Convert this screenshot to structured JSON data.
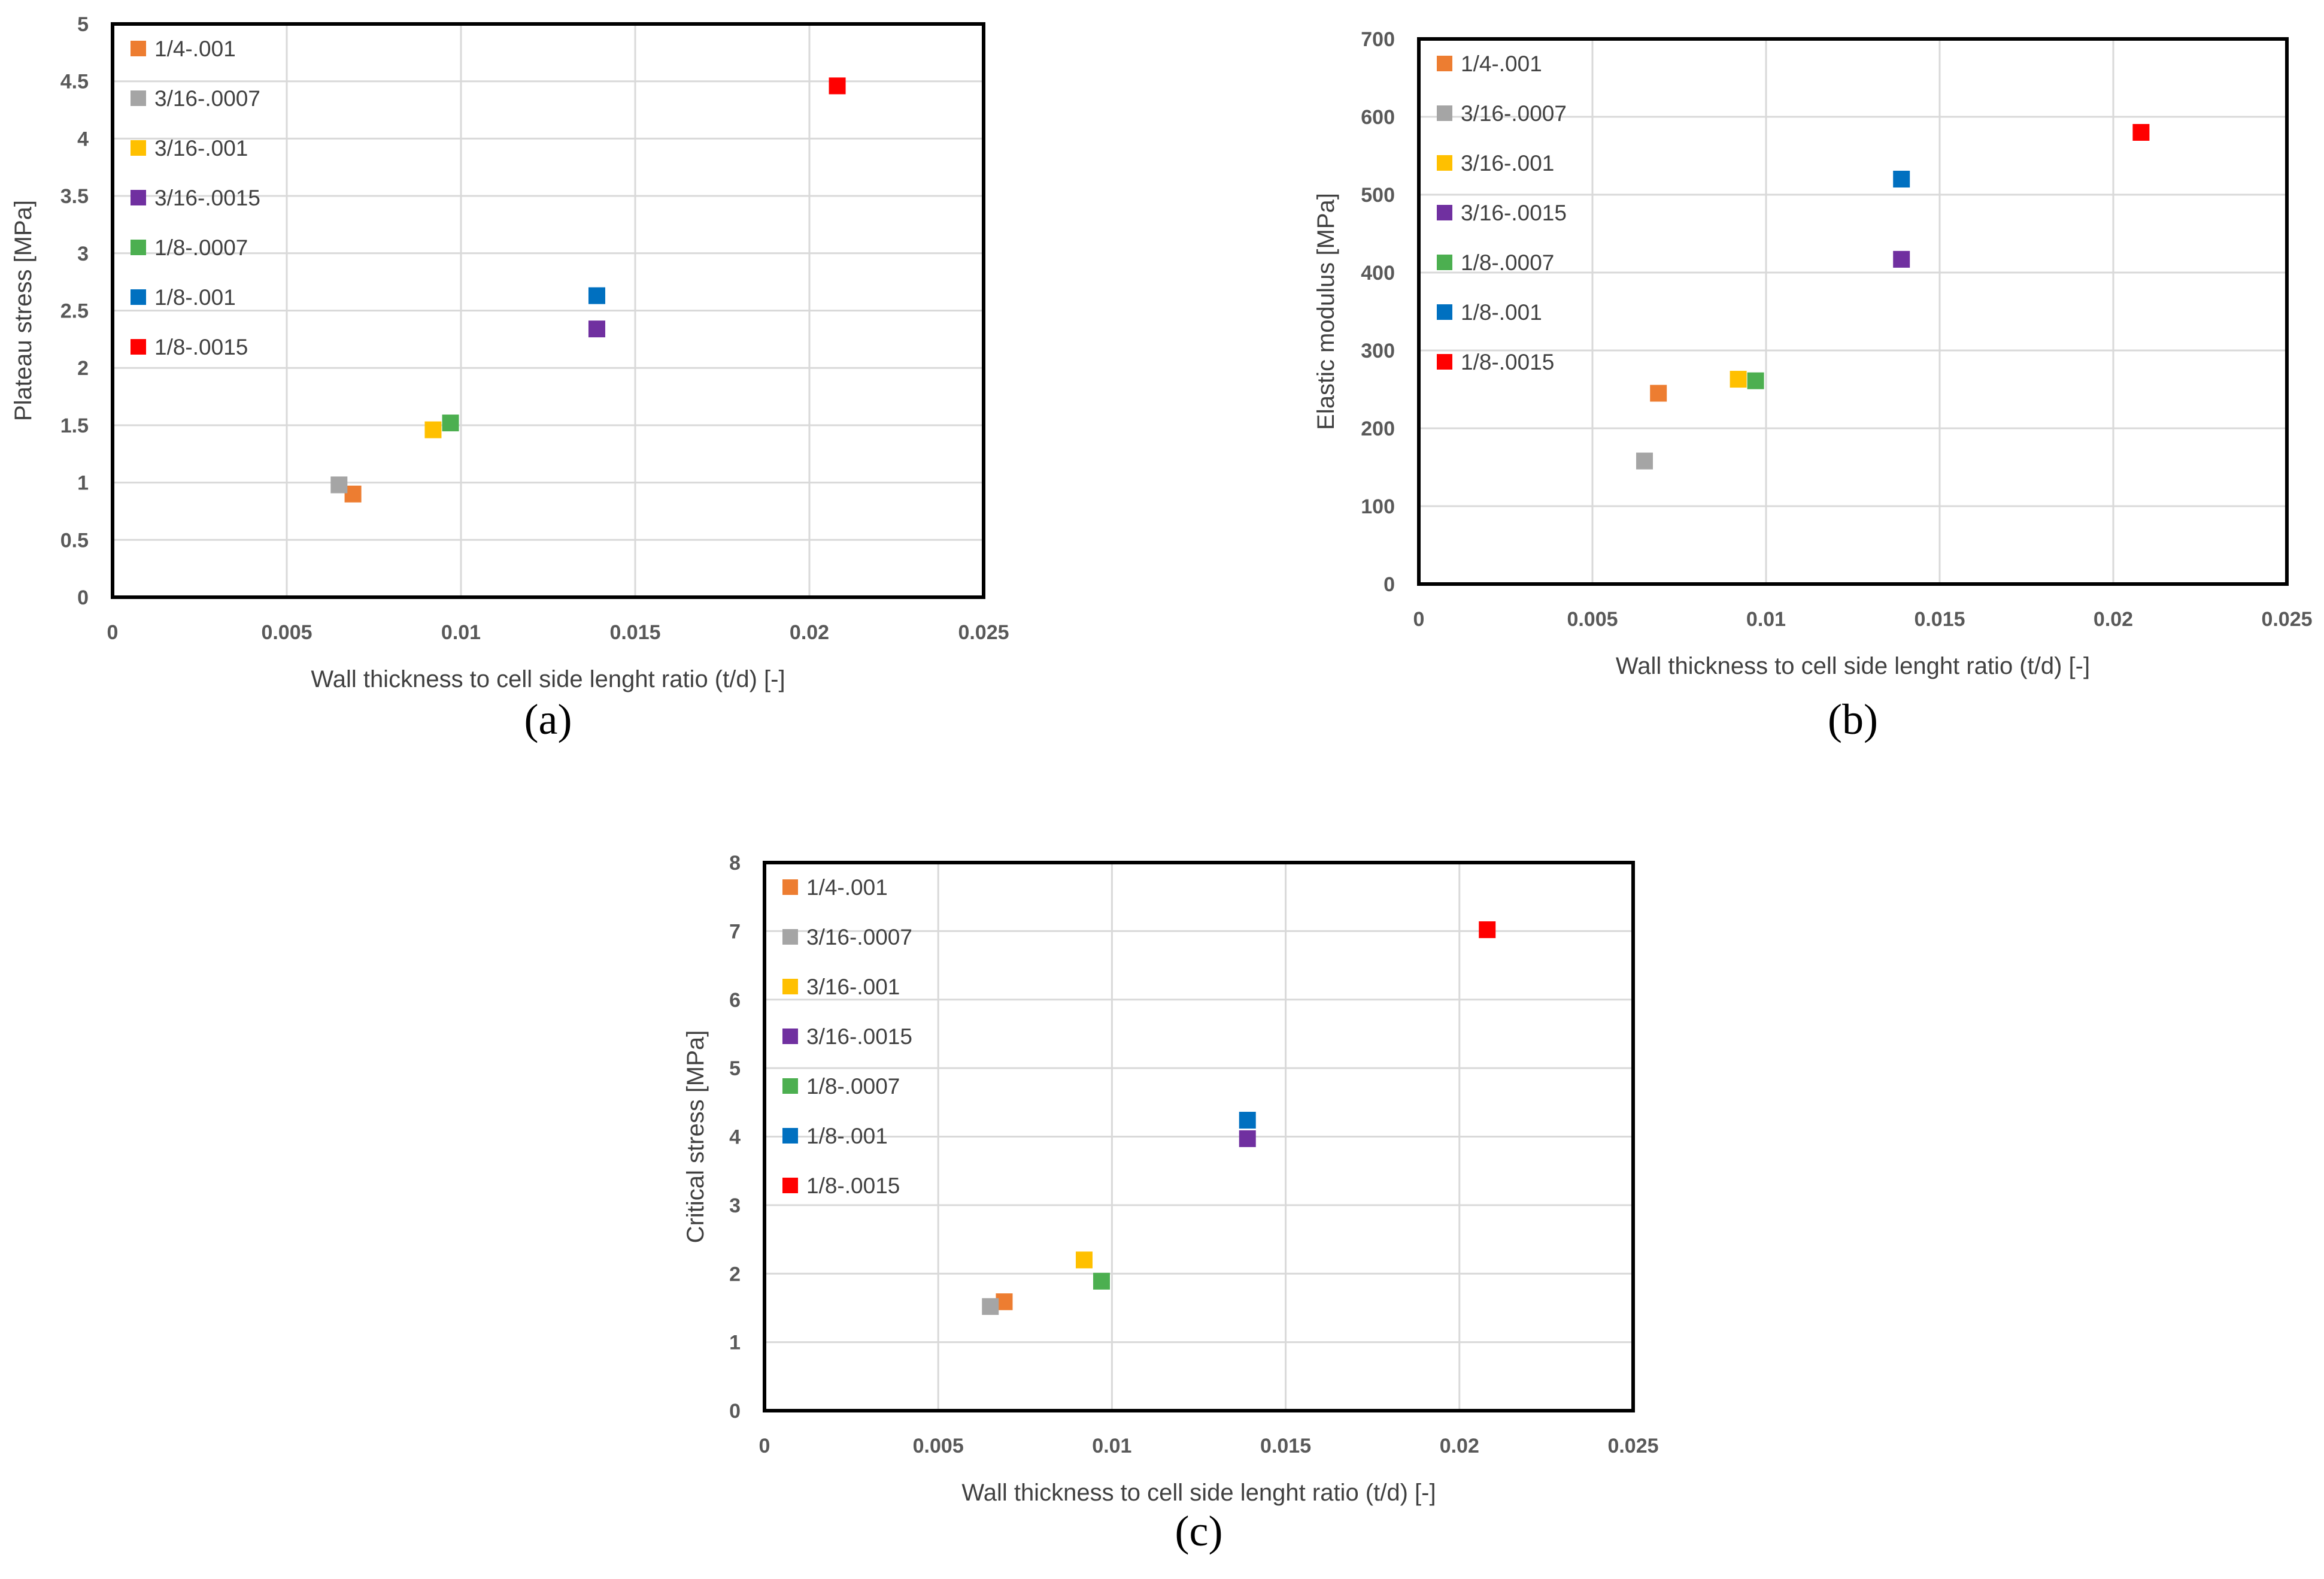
{
  "legend_colors": {
    "1/4-.001": "#ED7D31",
    "3/16-.0007": "#A5A5A5",
    "3/16-.001": "#FFC000",
    "3/16-.0015": "#7030A0",
    "1/8-.0007": "#4CAF50",
    "1/8-.001": "#0070C0",
    "1/8-.0015": "#FF0000"
  },
  "chart_data": [
    {
      "id": "a",
      "type": "scatter",
      "panel_label": "(a)",
      "xlabel": "Wall thickness to cell side lenght ratio (t/d)  [-]",
      "ylabel": "Plateau stress [MPa]",
      "xlim": [
        0,
        0.025
      ],
      "ylim": [
        0,
        5
      ],
      "xticks": [
        0,
        0.005,
        0.01,
        0.015,
        0.02,
        0.025
      ],
      "xtick_labels": [
        "0",
        "0.005",
        "0.01",
        "0.015",
        "0.02",
        "0.025"
      ],
      "yticks": [
        0,
        0.5,
        1,
        1.5,
        2,
        2.5,
        3,
        3.5,
        4,
        4.5,
        5
      ],
      "ytick_labels": [
        "0",
        "0.5",
        "1",
        "1.5",
        "2",
        "2.5",
        "3",
        "3.5",
        "4",
        "4.5",
        "5"
      ],
      "grid": true,
      "legend_position": "top-left",
      "series": [
        {
          "name": "1/4-.001",
          "x": [
            0.0069
          ],
          "y": [
            0.9
          ]
        },
        {
          "name": "3/16-.0007",
          "x": [
            0.0065
          ],
          "y": [
            0.98
          ]
        },
        {
          "name": "3/16-.001",
          "x": [
            0.0092
          ],
          "y": [
            1.46
          ]
        },
        {
          "name": "3/16-.0015",
          "x": [
            0.0139
          ],
          "y": [
            2.34
          ]
        },
        {
          "name": "1/8-.0007",
          "x": [
            0.0097
          ],
          "y": [
            1.52
          ]
        },
        {
          "name": "1/8-.001",
          "x": [
            0.0139
          ],
          "y": [
            2.63
          ]
        },
        {
          "name": "1/8-.0015",
          "x": [
            0.0208
          ],
          "y": [
            4.46
          ]
        }
      ]
    },
    {
      "id": "b",
      "type": "scatter",
      "panel_label": "(b)",
      "xlabel": "Wall thickness to cell side lenght ratio (t/d)  [-]",
      "ylabel": "Elastic modulus [MPa]",
      "xlim": [
        0,
        0.025
      ],
      "ylim": [
        0,
        700
      ],
      "xticks": [
        0,
        0.005,
        0.01,
        0.015,
        0.02,
        0.025
      ],
      "xtick_labels": [
        "0",
        "0.005",
        "0.01",
        "0.015",
        "0.02",
        "0.025"
      ],
      "yticks": [
        0,
        100,
        200,
        300,
        400,
        500,
        600,
        700
      ],
      "ytick_labels": [
        "0",
        "100",
        "200",
        "300",
        "400",
        "500",
        "600",
        "700"
      ],
      "grid": true,
      "legend_position": "top-left",
      "series": [
        {
          "name": "1/4-.001",
          "x": [
            0.0069
          ],
          "y": [
            245
          ]
        },
        {
          "name": "3/16-.0007",
          "x": [
            0.0065
          ],
          "y": [
            158
          ]
        },
        {
          "name": "3/16-.001",
          "x": [
            0.0092
          ],
          "y": [
            263
          ]
        },
        {
          "name": "3/16-.0015",
          "x": [
            0.0139
          ],
          "y": [
            417
          ]
        },
        {
          "name": "1/8-.0007",
          "x": [
            0.0097
          ],
          "y": [
            261
          ]
        },
        {
          "name": "1/8-.001",
          "x": [
            0.0139
          ],
          "y": [
            520
          ]
        },
        {
          "name": "1/8-.0015",
          "x": [
            0.0208
          ],
          "y": [
            580
          ]
        }
      ]
    },
    {
      "id": "c",
      "type": "scatter",
      "panel_label": "(c)",
      "xlabel": "Wall thickness to cell side lenght ratio (t/d)  [-]",
      "ylabel": "Critical stress [MPa]",
      "xlim": [
        0,
        0.025
      ],
      "ylim": [
        0,
        8
      ],
      "xticks": [
        0,
        0.005,
        0.01,
        0.015,
        0.02,
        0.025
      ],
      "xtick_labels": [
        "0",
        "0.005",
        "0.01",
        "0.015",
        "0.02",
        "0.025"
      ],
      "yticks": [
        0,
        1,
        2,
        3,
        4,
        5,
        6,
        7,
        8
      ],
      "ytick_labels": [
        "0",
        "1",
        "2",
        "3",
        "4",
        "5",
        "6",
        "7",
        "8"
      ],
      "grid": true,
      "legend_position": "top-left",
      "series": [
        {
          "name": "1/4-.001",
          "x": [
            0.0069
          ],
          "y": [
            1.59
          ]
        },
        {
          "name": "3/16-.0007",
          "x": [
            0.0065
          ],
          "y": [
            1.52
          ]
        },
        {
          "name": "3/16-.001",
          "x": [
            0.0092
          ],
          "y": [
            2.2
          ]
        },
        {
          "name": "3/16-.0015",
          "x": [
            0.0139
          ],
          "y": [
            3.97
          ]
        },
        {
          "name": "1/8-.0007",
          "x": [
            0.0097
          ],
          "y": [
            1.89
          ]
        },
        {
          "name": "1/8-.001",
          "x": [
            0.0139
          ],
          "y": [
            4.24
          ]
        },
        {
          "name": "1/8-.0015",
          "x": [
            0.0208
          ],
          "y": [
            7.02
          ]
        }
      ]
    }
  ]
}
